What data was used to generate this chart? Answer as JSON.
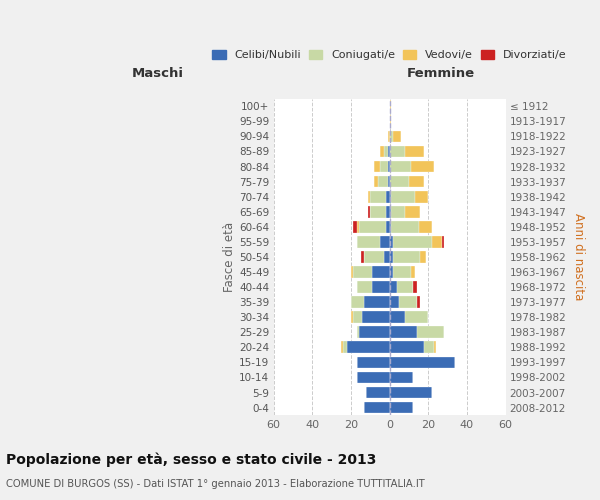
{
  "age_groups_bottom_to_top": [
    "0-4",
    "5-9",
    "10-14",
    "15-19",
    "20-24",
    "25-29",
    "30-34",
    "35-39",
    "40-44",
    "45-49",
    "50-54",
    "55-59",
    "60-64",
    "65-69",
    "70-74",
    "75-79",
    "80-84",
    "85-89",
    "90-94",
    "95-99",
    "100+"
  ],
  "birth_years_bottom_to_top": [
    "2008-2012",
    "2003-2007",
    "1998-2002",
    "1993-1997",
    "1988-1992",
    "1983-1987",
    "1978-1982",
    "1973-1977",
    "1968-1972",
    "1963-1967",
    "1958-1962",
    "1953-1957",
    "1948-1952",
    "1943-1947",
    "1938-1942",
    "1933-1937",
    "1928-1932",
    "1923-1927",
    "1918-1922",
    "1913-1917",
    "≤ 1912"
  ],
  "colors": {
    "celibe": "#3B6CB5",
    "coniugato": "#C8D9A5",
    "vedovo": "#F2C45A",
    "divorziato": "#CC2222"
  },
  "maschi": {
    "celibe": [
      13,
      12,
      17,
      17,
      22,
      16,
      14,
      13,
      9,
      9,
      3,
      5,
      2,
      2,
      2,
      1,
      1,
      1,
      0,
      0,
      0
    ],
    "coniugato": [
      0,
      0,
      0,
      0,
      2,
      1,
      5,
      7,
      8,
      10,
      10,
      12,
      14,
      8,
      8,
      5,
      4,
      2,
      0,
      0,
      0
    ],
    "vedovo": [
      0,
      0,
      0,
      0,
      1,
      0,
      1,
      0,
      0,
      1,
      0,
      0,
      1,
      0,
      1,
      2,
      3,
      2,
      1,
      0,
      0
    ],
    "divorziato": [
      0,
      0,
      0,
      0,
      0,
      0,
      0,
      0,
      0,
      0,
      2,
      0,
      2,
      1,
      0,
      0,
      0,
      0,
      0,
      0,
      0
    ]
  },
  "femmine": {
    "celibe": [
      12,
      22,
      12,
      34,
      18,
      14,
      8,
      5,
      4,
      2,
      2,
      2,
      1,
      1,
      1,
      0,
      0,
      0,
      0,
      0,
      0
    ],
    "coniugato": [
      0,
      0,
      0,
      0,
      5,
      14,
      12,
      9,
      8,
      9,
      14,
      20,
      14,
      7,
      12,
      10,
      11,
      8,
      2,
      0,
      0
    ],
    "vedovo": [
      0,
      0,
      0,
      0,
      1,
      0,
      0,
      0,
      0,
      2,
      3,
      5,
      7,
      8,
      7,
      8,
      12,
      10,
      4,
      1,
      1
    ],
    "divorziato": [
      0,
      0,
      0,
      0,
      0,
      0,
      0,
      2,
      2,
      0,
      0,
      1,
      0,
      0,
      0,
      0,
      0,
      0,
      0,
      0,
      0
    ]
  },
  "title": "Popolazione per età, sesso e stato civile - 2013",
  "subtitle": "COMUNE DI BURGOS (SS) - Dati ISTAT 1° gennaio 2013 - Elaborazione TUTTITALIA.IT",
  "label_maschi": "Maschi",
  "label_femmine": "Femmine",
  "ylabel_left": "Fasce di età",
  "ylabel_right": "Anni di nascita",
  "legend_labels": [
    "Celibi/Nubili",
    "Coniugati/e",
    "Vedovi/e",
    "Divorziati/e"
  ],
  "background_color": "#f0f0f0",
  "plot_bg_color": "#ffffff",
  "xlim": 60
}
